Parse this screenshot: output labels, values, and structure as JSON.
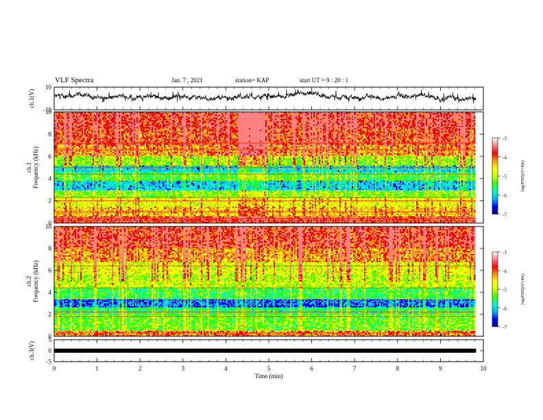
{
  "header": {
    "title": "VLF Spectra",
    "date": "Jan. 7 , 2021",
    "station": "station= KAP",
    "start_ut": "start UT = 9 : 20 : 1"
  },
  "colorbar": {
    "label_html": "log(PSD)(V²/Hz)",
    "ticks": [
      "-3",
      "-4",
      "-5",
      "-6",
      "-7"
    ],
    "stops": [
      "#000080",
      "#0000ff",
      "#00b4ff",
      "#00ffc8",
      "#32ff00",
      "#c8ff00",
      "#ffff00",
      "#ff9600",
      "#ff0000",
      "#ff8080",
      "#ffffff"
    ]
  },
  "xaxis": {
    "label": "Time (min)",
    "ticks": [
      "0",
      "1",
      "2",
      "3",
      "4",
      "5",
      "6",
      "7",
      "8",
      "9",
      "10"
    ]
  },
  "chart_data": [
    {
      "type": "line",
      "name": "ch1-waveform",
      "ylabel": "ch.1(V)",
      "ylim": [
        -10,
        10
      ],
      "yticks": [
        "10",
        "-10"
      ],
      "xlim": [
        0,
        10
      ],
      "data_end_min": 9.83,
      "note": "noisy waveform roughly between -4 and 6 V"
    },
    {
      "type": "heatmap",
      "name": "ch1-spectrogram",
      "ylabel_line1": "ch.1",
      "ylabel_line2": "Frequency (kHz)",
      "ylim": [
        0,
        10
      ],
      "yticks": [
        "0",
        "2",
        "4",
        "6",
        "8",
        "10"
      ],
      "xlim": [
        0,
        10
      ],
      "clim": [
        -7,
        -3
      ],
      "bands": [
        {
          "from": 0.0,
          "to": 0.6,
          "level": -3.6
        },
        {
          "from": 0.6,
          "to": 1.5,
          "level": -4.2
        },
        {
          "from": 1.5,
          "to": 2.4,
          "level": -4.6
        },
        {
          "from": 2.4,
          "to": 3.0,
          "level": -5.0
        },
        {
          "from": 3.0,
          "to": 3.8,
          "level": -5.9
        },
        {
          "from": 3.8,
          "to": 4.6,
          "level": -5.2
        },
        {
          "from": 4.6,
          "to": 5.2,
          "level": -5.8
        },
        {
          "from": 5.2,
          "to": 6.0,
          "level": -4.9
        },
        {
          "from": 6.0,
          "to": 7.0,
          "level": -4.0
        },
        {
          "from": 7.0,
          "to": 8.5,
          "level": -3.7
        },
        {
          "from": 8.5,
          "to": 10.0,
          "level": -3.5
        }
      ],
      "lines_khz": [
        0.2,
        0.4,
        1.0,
        2.0,
        2.3,
        4.4,
        5.0,
        6.6,
        7.2
      ]
    },
    {
      "type": "heatmap",
      "name": "ch2-spectrogram",
      "ylabel_line1": "ch.2",
      "ylabel_line2": "Frequency (kHz)",
      "ylim": [
        0,
        10
      ],
      "yticks": [
        "0",
        "2",
        "4",
        "6",
        "8",
        "10"
      ],
      "xlim": [
        0,
        10
      ],
      "clim": [
        -7,
        -3
      ],
      "bands": [
        {
          "from": 0.0,
          "to": 0.5,
          "level": -4.0
        },
        {
          "from": 0.5,
          "to": 2.0,
          "level": -5.1
        },
        {
          "from": 2.0,
          "to": 2.6,
          "level": -5.4
        },
        {
          "from": 2.6,
          "to": 3.4,
          "level": -6.2
        },
        {
          "from": 3.4,
          "to": 4.4,
          "level": -5.3
        },
        {
          "from": 4.4,
          "to": 5.6,
          "level": -4.8
        },
        {
          "from": 5.6,
          "to": 6.8,
          "level": -4.6
        },
        {
          "from": 6.8,
          "to": 8.0,
          "level": -4.0
        },
        {
          "from": 8.0,
          "to": 10.0,
          "level": -3.6
        }
      ],
      "lines_khz": [
        0.3,
        1.8,
        2.2,
        3.3,
        4.4,
        6.4
      ]
    },
    {
      "type": "line",
      "name": "ch3-signal",
      "ylabel": "ch.3(V)",
      "ylim": [
        -5,
        5
      ],
      "yticks": [
        "5",
        "0",
        "-5"
      ],
      "xlim": [
        0,
        10
      ],
      "data_end_min": 9.83,
      "value_v": 0.0
    }
  ]
}
